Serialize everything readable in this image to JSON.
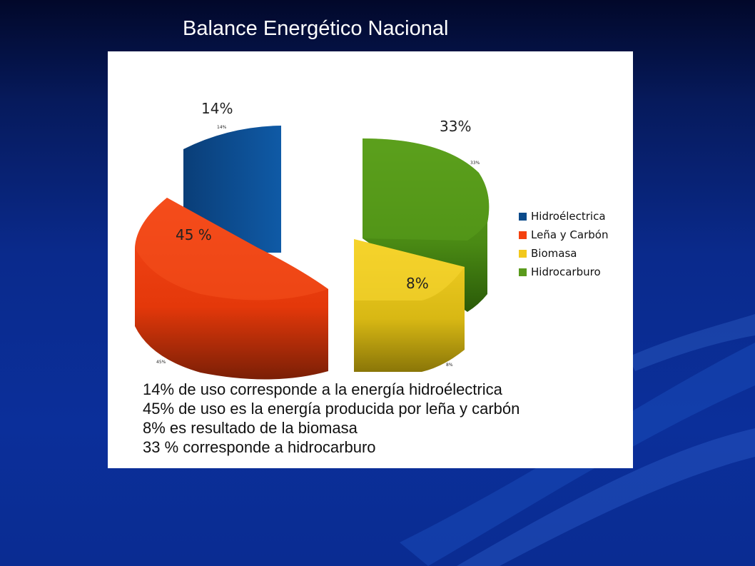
{
  "slide": {
    "title": "Balance Energético Nacional"
  },
  "chart_data": {
    "type": "pie",
    "style": "3d exploded",
    "categories": [
      "Hidroélectrica",
      "Leña y Carbón",
      "Biomasa",
      "Hidrocarburo"
    ],
    "values": [
      14,
      45,
      8,
      33
    ],
    "colors": [
      "#0b4a8a",
      "#f4410f",
      "#f2c81c",
      "#5a9a1c"
    ],
    "big_labels": [
      "14%",
      "45 %",
      "8%",
      "33%"
    ],
    "small_labels": [
      "14%",
      "45%",
      "8%",
      "33%"
    ],
    "legend_position": "right"
  },
  "notes": [
    "14% de uso corresponde a la energía hidroélectrica",
    "45% de uso es la energía producida por leña y carbón",
    "8% es resultado de la biomasa",
    "33 % corresponde a hidrocarburo"
  ]
}
